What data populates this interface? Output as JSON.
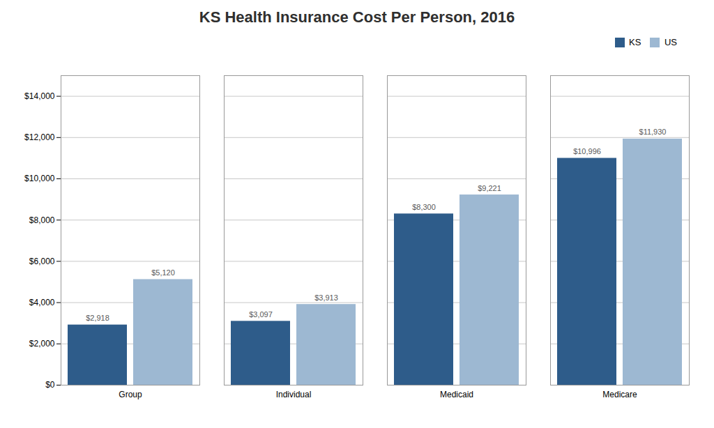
{
  "chart_data": {
    "type": "bar",
    "title": "KS Health Insurance Cost Per Person, 2016",
    "categories": [
      "Group",
      "Individual",
      "Medicaid",
      "Medicare"
    ],
    "series": [
      {
        "name": "KS",
        "color": "#2E5C8A",
        "values": [
          2918,
          3097,
          8300,
          10996
        ],
        "value_labels": [
          "$2,918",
          "$3,097",
          "$8,300",
          "$10,996"
        ]
      },
      {
        "name": "US",
        "color": "#9DB8D2",
        "values": [
          5120,
          3913,
          9221,
          11930
        ],
        "value_labels": [
          "$5,120",
          "$3,913",
          "$9,221",
          "$11,930"
        ]
      }
    ],
    "ylim": [
      0,
      15000
    ],
    "yticks": [
      {
        "value": 0,
        "label": "$0"
      },
      {
        "value": 2000,
        "label": "$2,000"
      },
      {
        "value": 4000,
        "label": "$4,000"
      },
      {
        "value": 6000,
        "label": "$6,000"
      },
      {
        "value": 8000,
        "label": "$8,000"
      },
      {
        "value": 10000,
        "label": "$10,000"
      },
      {
        "value": 12000,
        "label": "$12,000"
      },
      {
        "value": 14000,
        "label": "$14,000"
      }
    ],
    "grid": true,
    "legend": "upper right",
    "data_labels": true
  }
}
